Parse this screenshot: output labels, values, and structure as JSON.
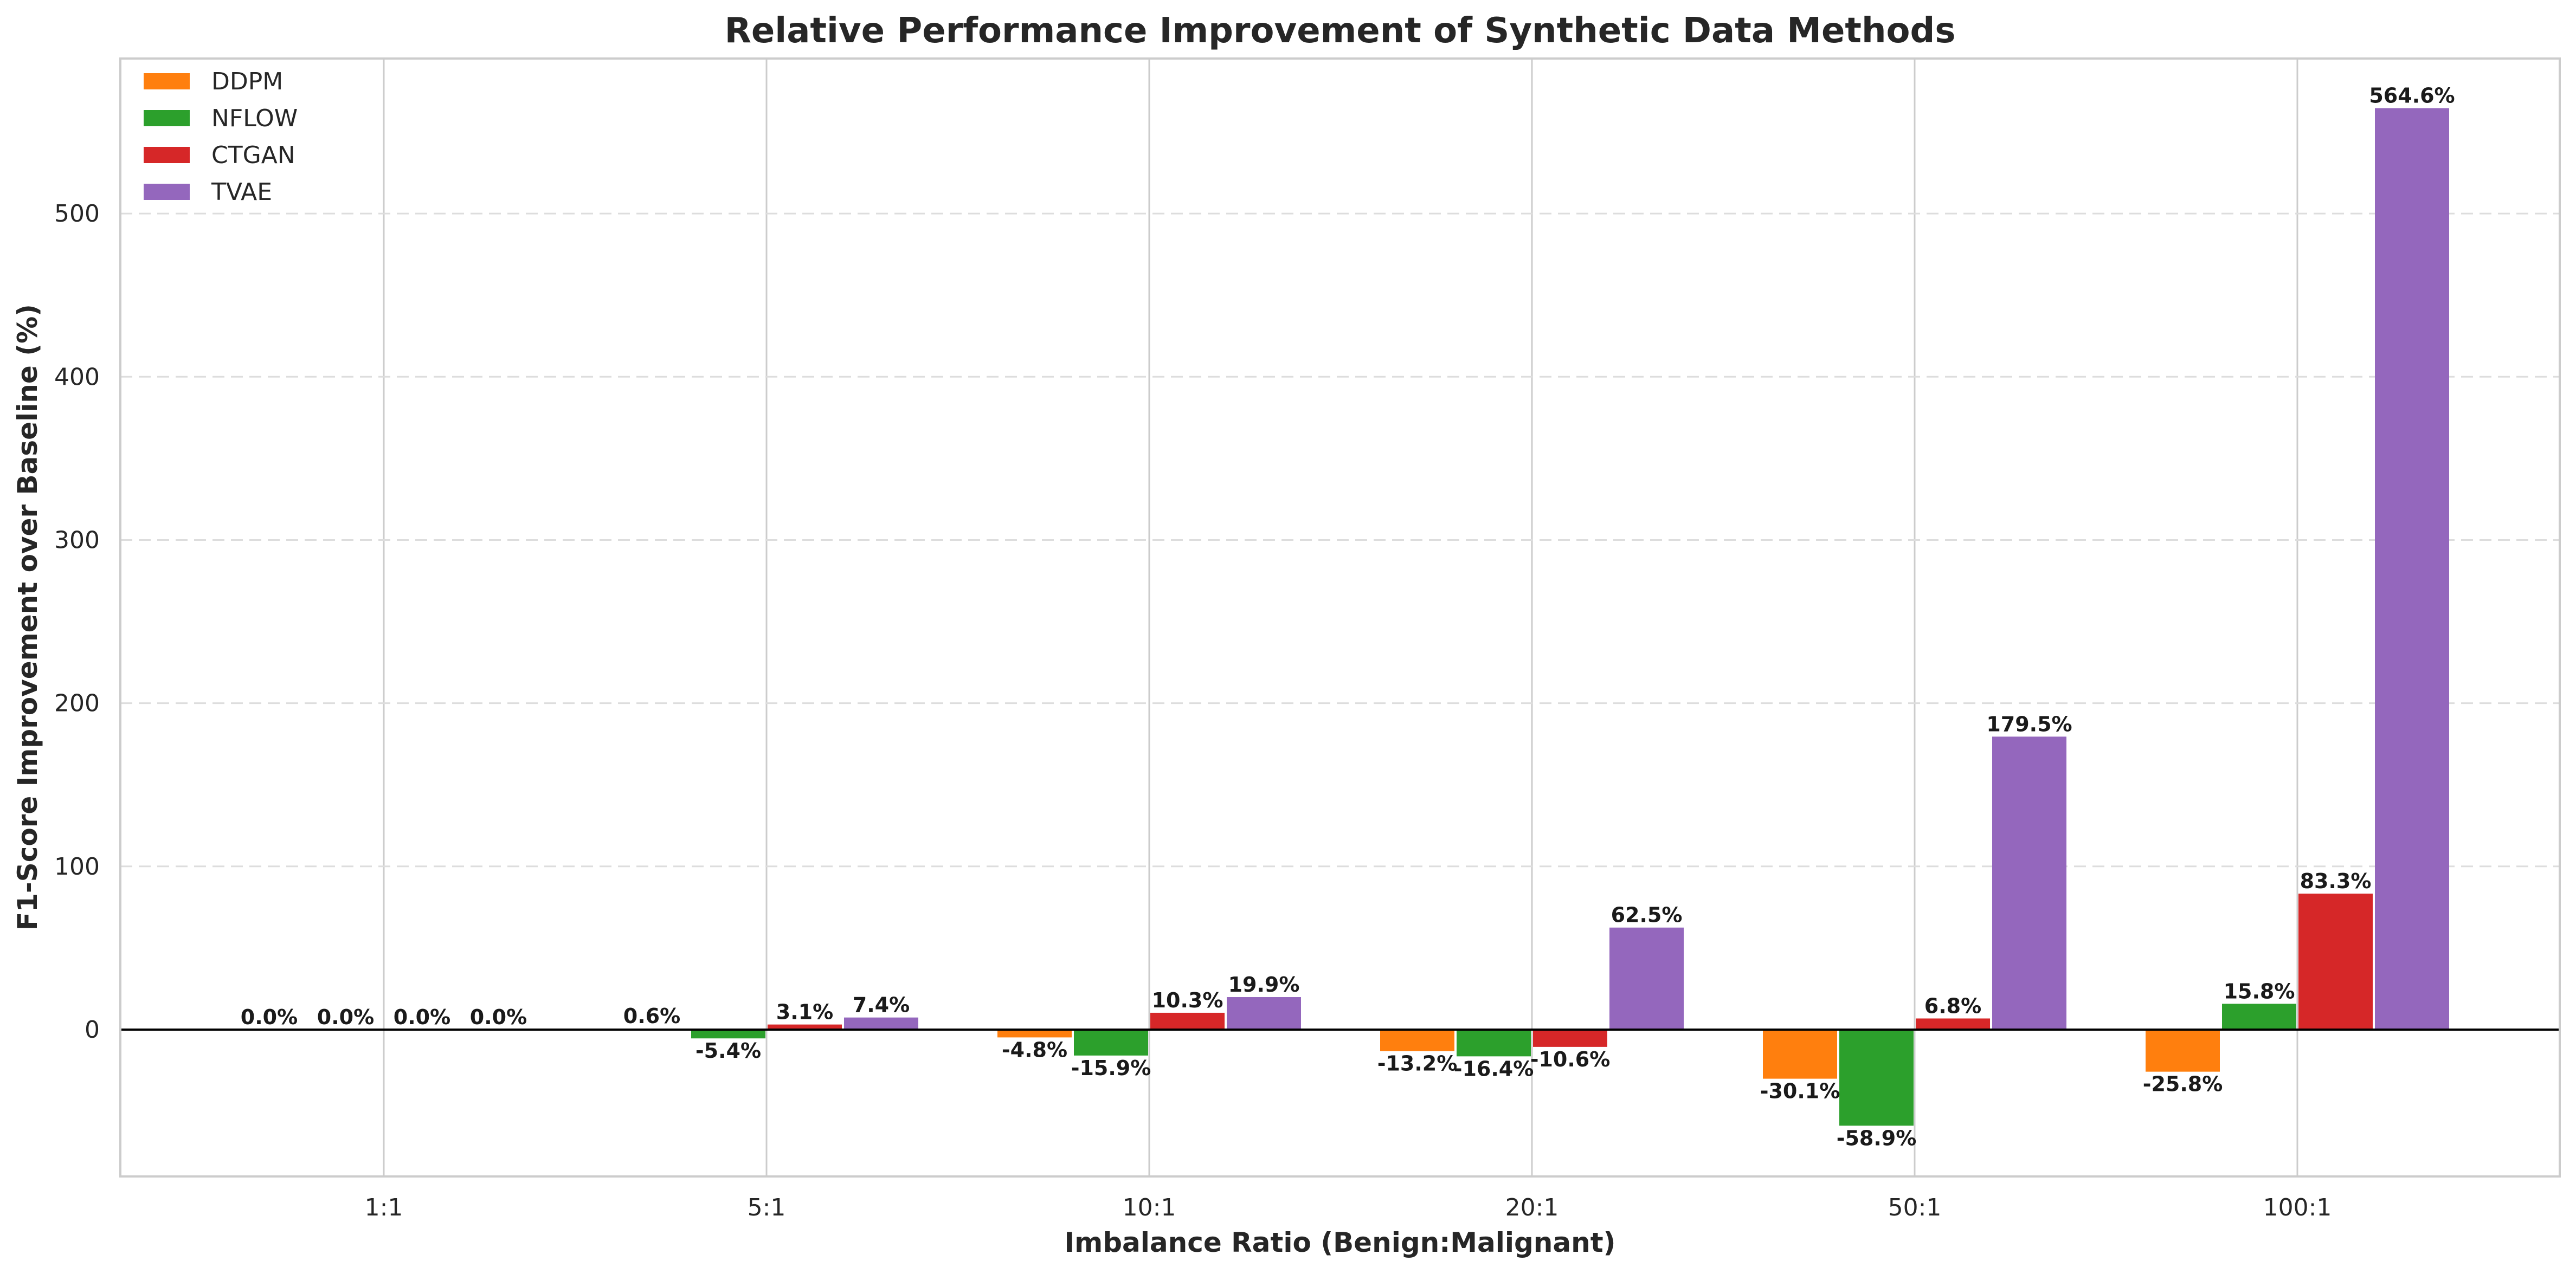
{
  "chart_data": {
    "type": "bar",
    "title": "Relative Performance Improvement of Synthetic Data Methods",
    "xlabel": "Imbalance Ratio (Benign:Malignant)",
    "ylabel": "F1-Score Improvement over Baseline (%)",
    "categories": [
      "1:1",
      "5:1",
      "10:1",
      "20:1",
      "50:1",
      "100:1"
    ],
    "series": [
      {
        "name": "DDPM",
        "color": "#ff7f0e",
        "values": [
          0.0,
          0.6,
          -4.8,
          -13.2,
          -30.1,
          -25.8
        ],
        "labels": [
          "0.0%",
          "0.6%",
          "-4.8%",
          "-13.2%",
          "-30.1%",
          "-25.8%"
        ]
      },
      {
        "name": "NFLOW",
        "color": "#2ca02c",
        "values": [
          0.0,
          -5.4,
          -15.9,
          -16.4,
          -58.9,
          15.8
        ],
        "labels": [
          "0.0%",
          "-5.4%",
          "-15.9%",
          "-16.4%",
          "-58.9%",
          "15.8%"
        ]
      },
      {
        "name": "CTGAN",
        "color": "#d62728",
        "values": [
          0.0,
          3.1,
          10.3,
          -10.6,
          6.8,
          83.3
        ],
        "labels": [
          "0.0%",
          "3.1%",
          "10.3%",
          "-10.6%",
          "6.8%",
          "83.3%"
        ]
      },
      {
        "name": "TVAE",
        "color": "#9467bd",
        "values": [
          0.0,
          7.4,
          19.9,
          62.5,
          179.5,
          564.6
        ],
        "labels": [
          "0.0%",
          "7.4%",
          "19.9%",
          "62.5%",
          "179.5%",
          "564.6%"
        ]
      }
    ],
    "ylim": [
      -90,
      595
    ],
    "yticks": [
      0,
      100,
      200,
      300,
      400,
      500
    ],
    "ytick_labels": [
      "0",
      "100",
      "200",
      "300",
      "400",
      "500"
    ],
    "grid": {
      "y": "dashed",
      "x": "solid"
    },
    "legend_position": "top-left"
  }
}
